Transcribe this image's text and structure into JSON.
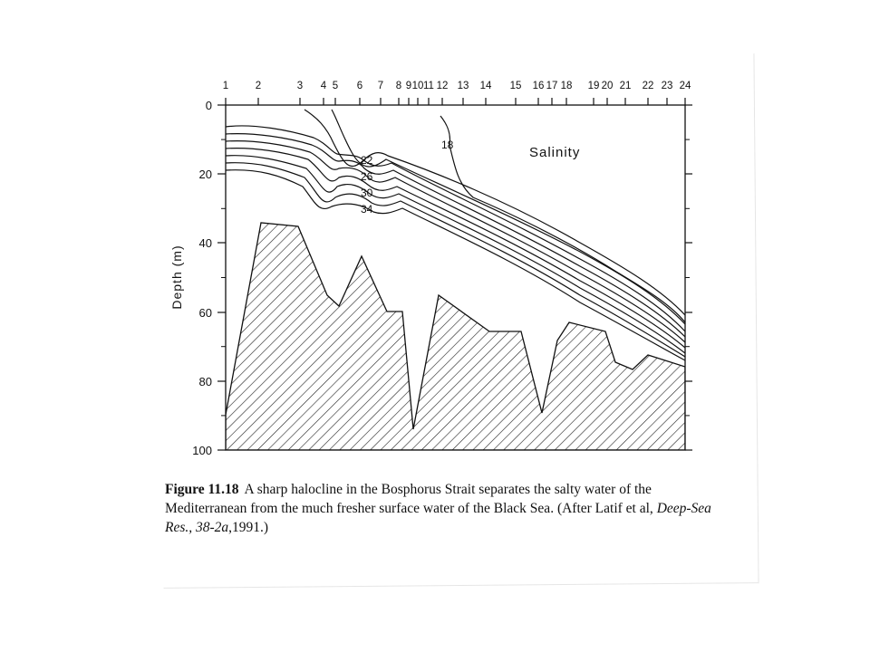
{
  "figure": {
    "station_labels": [
      "1",
      "2",
      "3",
      "4",
      "5",
      "6",
      "7",
      "8",
      "9",
      "10",
      "11",
      "12",
      "13",
      "14",
      "15",
      "16",
      "17",
      "18",
      "19",
      "20",
      "21",
      "22",
      "23",
      "24"
    ],
    "depth_ticks": [
      "0",
      "20",
      "40",
      "60",
      "80",
      "100"
    ],
    "y_axis_label": "Depth (m)",
    "panel_title": "Salinity",
    "contour_labels": [
      "18",
      "22",
      "26",
      "30",
      "34"
    ]
  },
  "caption": {
    "label": "Figure 11.18",
    "text": "A sharp halocline in the Bosphorus Strait separates the salty water of the Mediterranean from the much fresher surface water of the Black Sea. (After Latif et al,",
    "journal": "Deep-Sea Res., 38-2a",
    "year": ",1991.)"
  }
}
